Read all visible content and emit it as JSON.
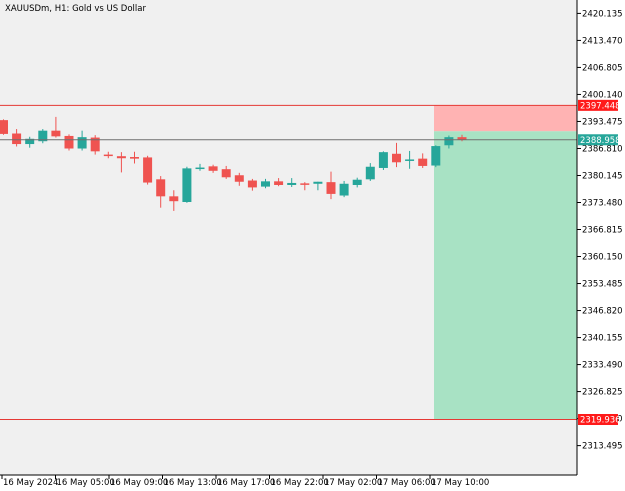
{
  "chart_title": "XAUUSDm, H1:  Gold vs US Dollar",
  "colors": {
    "background": "#ffffff",
    "plot_background": "#f0f0f0",
    "axis": "#000000",
    "bull": "#26a69a",
    "bear": "#ef5350",
    "stop_loss_line": "#e53935",
    "stop_loss_zone": "#ffb3b3",
    "take_profit_zone": "#a8e2c4",
    "current_price_line": "#6f6f6f",
    "stop_loss_tag": "#ff1a1a",
    "price_tag": "#26a69a",
    "take_profit_tag": "#ff1a1a"
  },
  "chart_data": {
    "type": "candlestick",
    "symbol": "XAUUSDm",
    "timeframe": "H1",
    "description": "Gold vs US Dollar",
    "ylim": [
      2308.2,
      2425.1
    ],
    "y_ticks": [
      "2420.135",
      "2413.470",
      "2406.805",
      "2400.140",
      "2393.475",
      "2386.810",
      "2380.145",
      "2373.480",
      "2366.815",
      "2360.150",
      "2353.485",
      "2346.820",
      "2340.155",
      "2333.490",
      "2326.825",
      "2320.160",
      "2313.495"
    ],
    "x_ticks": [
      "16 May 2024",
      "16 May 05:00",
      "16 May 09:00",
      "16 May 13:00",
      "16 May 17:00",
      "16 May 22:00",
      "17 May 02:00",
      "17 May 06:00",
      "17 May 10:00"
    ],
    "levels": {
      "stop_loss_price": "2397.448",
      "current_price": "2388.958",
      "take_profit_price": "2319.936"
    },
    "candles": [
      {
        "o": 2393.8,
        "h": 2394.0,
        "l": 2390.2,
        "c": 2390.4
      },
      {
        "o": 2390.5,
        "h": 2391.6,
        "l": 2387.3,
        "c": 2387.9
      },
      {
        "o": 2387.9,
        "h": 2389.7,
        "l": 2387.0,
        "c": 2389.2
      },
      {
        "o": 2388.6,
        "h": 2391.6,
        "l": 2388.1,
        "c": 2391.2
      },
      {
        "o": 2391.2,
        "h": 2394.6,
        "l": 2389.5,
        "c": 2389.8
      },
      {
        "o": 2389.9,
        "h": 2390.3,
        "l": 2386.3,
        "c": 2386.8
      },
      {
        "o": 2386.8,
        "h": 2391.2,
        "l": 2386.3,
        "c": 2389.6
      },
      {
        "o": 2389.5,
        "h": 2390.1,
        "l": 2385.3,
        "c": 2386.1
      },
      {
        "o": 2385.3,
        "h": 2386.0,
        "l": 2384.4,
        "c": 2385.1
      },
      {
        "o": 2384.9,
        "h": 2385.9,
        "l": 2380.9,
        "c": 2384.4
      },
      {
        "o": 2384.7,
        "h": 2386.0,
        "l": 2383.1,
        "c": 2384.3
      },
      {
        "o": 2384.6,
        "h": 2385.0,
        "l": 2377.9,
        "c": 2378.4
      },
      {
        "o": 2379.2,
        "h": 2380.0,
        "l": 2372.2,
        "c": 2375.0
      },
      {
        "o": 2375.0,
        "h": 2376.5,
        "l": 2371.4,
        "c": 2373.8
      },
      {
        "o": 2373.6,
        "h": 2382.3,
        "l": 2373.4,
        "c": 2381.9
      },
      {
        "o": 2381.9,
        "h": 2383.0,
        "l": 2381.3,
        "c": 2382.1
      },
      {
        "o": 2382.4,
        "h": 2382.8,
        "l": 2380.8,
        "c": 2381.3
      },
      {
        "o": 2381.7,
        "h": 2382.5,
        "l": 2379.3,
        "c": 2379.7
      },
      {
        "o": 2380.2,
        "h": 2380.8,
        "l": 2377.6,
        "c": 2378.6
      },
      {
        "o": 2378.9,
        "h": 2379.3,
        "l": 2376.4,
        "c": 2377.2
      },
      {
        "o": 2377.4,
        "h": 2379.3,
        "l": 2377.0,
        "c": 2378.7
      },
      {
        "o": 2378.7,
        "h": 2379.5,
        "l": 2377.5,
        "c": 2377.8
      },
      {
        "o": 2377.8,
        "h": 2379.5,
        "l": 2377.3,
        "c": 2378.3
      },
      {
        "o": 2378.2,
        "h": 2378.5,
        "l": 2376.5,
        "c": 2378.1
      },
      {
        "o": 2378.1,
        "h": 2378.6,
        "l": 2376.5,
        "c": 2378.6
      },
      {
        "o": 2378.5,
        "h": 2381.1,
        "l": 2374.3,
        "c": 2375.6
      },
      {
        "o": 2375.2,
        "h": 2378.8,
        "l": 2374.8,
        "c": 2378.1
      },
      {
        "o": 2377.8,
        "h": 2379.6,
        "l": 2377.2,
        "c": 2379.1
      },
      {
        "o": 2379.2,
        "h": 2383.2,
        "l": 2378.8,
        "c": 2382.3
      },
      {
        "o": 2382.0,
        "h": 2386.1,
        "l": 2381.5,
        "c": 2385.9
      },
      {
        "o": 2385.5,
        "h": 2388.2,
        "l": 2382.2,
        "c": 2383.4
      },
      {
        "o": 2383.9,
        "h": 2386.2,
        "l": 2381.8,
        "c": 2384.1
      },
      {
        "o": 2384.3,
        "h": 2385.6,
        "l": 2382.0,
        "c": 2382.5
      },
      {
        "o": 2382.6,
        "h": 2387.6,
        "l": 2382.2,
        "c": 2387.4
      },
      {
        "o": 2387.6,
        "h": 2390.0,
        "l": 2386.8,
        "c": 2389.6
      },
      {
        "o": 2389.6,
        "h": 2390.2,
        "l": 2388.6,
        "c": 2389.0
      }
    ]
  }
}
